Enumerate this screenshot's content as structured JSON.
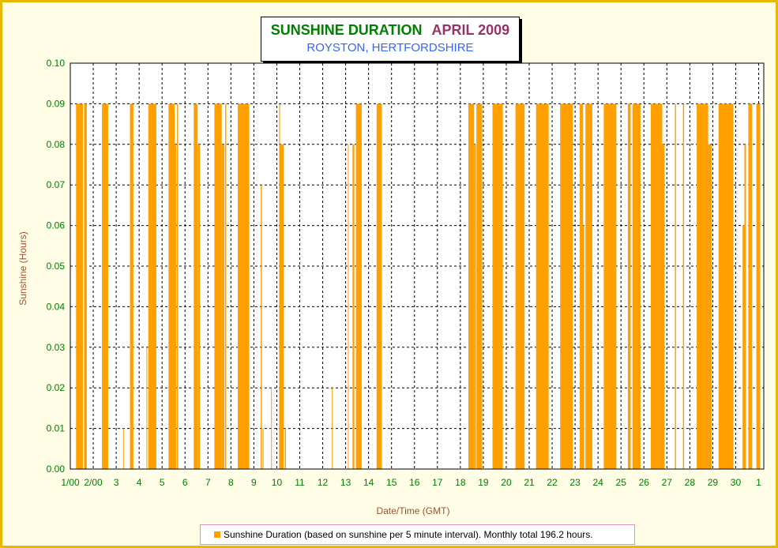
{
  "header": {
    "title": "SUNSHINE DURATION",
    "month": "APRIL 2009",
    "subtitle": "ROYSTON, HERTFORDSHIRE"
  },
  "legend": {
    "label": "Sunshine Duration (based on sunshine per 5 minute interval). Monthly total 196.2 hours."
  },
  "colors": {
    "bars": "#ffa000",
    "tick_text": "#008000",
    "axis_title": "#a0522d",
    "frame": "#e8b800",
    "background": "#fffde6"
  },
  "chart_data": {
    "type": "bar",
    "title": "SUNSHINE DURATION APRIL 2009",
    "subtitle": "ROYSTON, HERTFORDSHIRE",
    "xlabel": "Date/Time (GMT)",
    "ylabel": "Sunshine (Hours)",
    "ylim": [
      0,
      0.1
    ],
    "yticks": [
      "0.00",
      "0.01",
      "0.02",
      "0.03",
      "0.04",
      "0.05",
      "0.06",
      "0.07",
      "0.08",
      "0.09",
      "0.10"
    ],
    "xlim_days": [
      1,
      31.07
    ],
    "xticks": [
      "1/00",
      "2/00",
      "3",
      "4",
      "5",
      "6",
      "7",
      "8",
      "9",
      "10",
      "11",
      "12",
      "13",
      "14",
      "15",
      "16",
      "17",
      "18",
      "19",
      "20",
      "21",
      "22",
      "23",
      "24",
      "25",
      "26",
      "27",
      "28",
      "29",
      "30",
      "1"
    ],
    "grid": true,
    "grid_style": "dashed",
    "legend_position": "bottom",
    "series": [
      {
        "name": "Sunshine Duration (based on sunshine per 5 minute interval). Monthly total 196.2 hours.",
        "unit": "hours per 5 minutes",
        "bursts": [
          {
            "start": 1.25,
            "end": 1.55,
            "value": 0.09
          },
          {
            "start": 1.3,
            "end": 1.33,
            "value": 0.08
          },
          {
            "start": 1.6,
            "end": 1.72,
            "value": 0.09
          },
          {
            "start": 2.38,
            "end": 2.65,
            "value": 0.09
          },
          {
            "start": 3.3,
            "end": 3.33,
            "value": 0.01
          },
          {
            "start": 3.6,
            "end": 3.75,
            "value": 0.09
          },
          {
            "start": 4.32,
            "end": 4.35,
            "value": 0.03
          },
          {
            "start": 4.4,
            "end": 4.75,
            "value": 0.09
          },
          {
            "start": 5.28,
            "end": 5.55,
            "value": 0.09
          },
          {
            "start": 5.5,
            "end": 5.62,
            "value": 0.08
          },
          {
            "start": 5.65,
            "end": 5.7,
            "value": 0.09
          },
          {
            "start": 6.38,
            "end": 6.55,
            "value": 0.09
          },
          {
            "start": 6.55,
            "end": 6.65,
            "value": 0.08
          },
          {
            "start": 7.28,
            "end": 7.6,
            "value": 0.09
          },
          {
            "start": 7.6,
            "end": 7.72,
            "value": 0.08
          },
          {
            "start": 7.75,
            "end": 7.8,
            "value": 0.09
          },
          {
            "start": 8.3,
            "end": 8.8,
            "value": 0.09
          },
          {
            "start": 9.3,
            "end": 9.35,
            "value": 0.07
          },
          {
            "start": 9.38,
            "end": 9.42,
            "value": 0.01
          },
          {
            "start": 9.75,
            "end": 9.78,
            "value": 0.02
          },
          {
            "start": 10.1,
            "end": 10.14,
            "value": 0.09
          },
          {
            "start": 10.14,
            "end": 10.3,
            "value": 0.08
          },
          {
            "start": 10.35,
            "end": 10.4,
            "value": 0.01
          },
          {
            "start": 12.4,
            "end": 12.43,
            "value": 0.02
          },
          {
            "start": 13.1,
            "end": 13.13,
            "value": 0.08
          },
          {
            "start": 13.3,
            "end": 13.38,
            "value": 0.08
          },
          {
            "start": 13.45,
            "end": 13.7,
            "value": 0.09
          },
          {
            "start": 14.35,
            "end": 14.58,
            "value": 0.09
          },
          {
            "start": 18.35,
            "end": 18.6,
            "value": 0.09
          },
          {
            "start": 18.6,
            "end": 18.68,
            "value": 0.08
          },
          {
            "start": 18.7,
            "end": 18.95,
            "value": 0.09
          },
          {
            "start": 19.4,
            "end": 19.85,
            "value": 0.09
          },
          {
            "start": 20.4,
            "end": 20.8,
            "value": 0.09
          },
          {
            "start": 21.3,
            "end": 21.85,
            "value": 0.09
          },
          {
            "start": 22.35,
            "end": 22.9,
            "value": 0.09
          },
          {
            "start": 23.2,
            "end": 23.35,
            "value": 0.09
          },
          {
            "start": 23.3,
            "end": 23.4,
            "value": 0.06
          },
          {
            "start": 23.45,
            "end": 23.75,
            "value": 0.09
          },
          {
            "start": 24.25,
            "end": 24.8,
            "value": 0.09
          },
          {
            "start": 25.3,
            "end": 25.42,
            "value": 0.09
          },
          {
            "start": 25.5,
            "end": 25.85,
            "value": 0.09
          },
          {
            "start": 26.3,
            "end": 26.8,
            "value": 0.09
          },
          {
            "start": 26.8,
            "end": 26.9,
            "value": 0.08
          },
          {
            "start": 27.35,
            "end": 27.4,
            "value": 0.09
          },
          {
            "start": 27.7,
            "end": 27.75,
            "value": 0.09
          },
          {
            "start": 28.3,
            "end": 28.8,
            "value": 0.09
          },
          {
            "start": 28.8,
            "end": 28.95,
            "value": 0.08
          },
          {
            "start": 29.25,
            "end": 29.8,
            "value": 0.09
          },
          {
            "start": 29.8,
            "end": 29.9,
            "value": 0.09
          },
          {
            "start": 30.3,
            "end": 30.38,
            "value": 0.06
          },
          {
            "start": 30.38,
            "end": 30.45,
            "value": 0.08
          },
          {
            "start": 30.55,
            "end": 30.72,
            "value": 0.09
          },
          {
            "start": 30.9,
            "end": 31.07,
            "value": 0.09
          }
        ]
      }
    ]
  }
}
